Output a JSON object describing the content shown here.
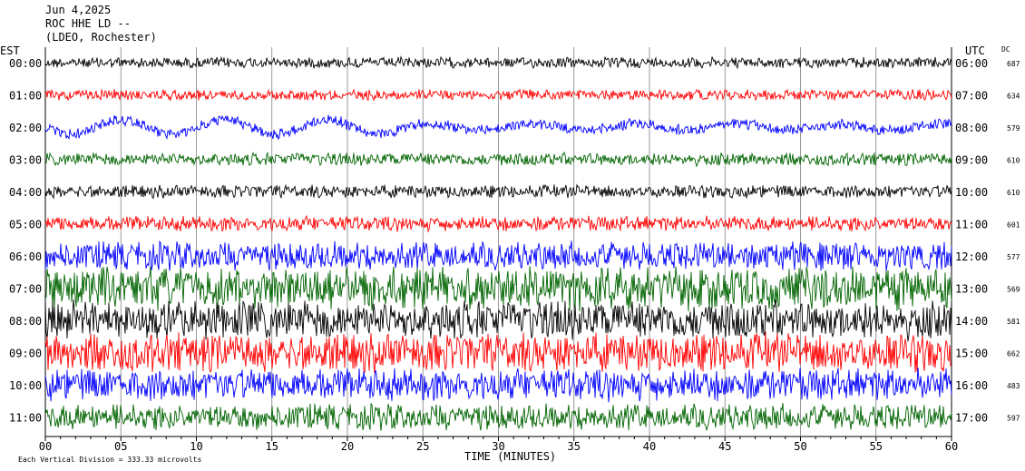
{
  "header": {
    "date": "Jun 4,2025",
    "station": "ROC HHE LD --",
    "network": "(LDEO, Rochester)"
  },
  "chart_data": {
    "type": "helicorder",
    "left_axis_label": "EST",
    "right_axis_label": "UTC",
    "dc_label": "DC",
    "xlabel": "TIME (MINUTES)",
    "xlim": [
      0,
      60
    ],
    "x_ticks": [
      "00",
      "05",
      "10",
      "15",
      "20",
      "25",
      "30",
      "35",
      "40",
      "45",
      "50",
      "55",
      "60"
    ],
    "footer": "Each Vertical Division =  333.33 microvolts",
    "rows": [
      {
        "est": "00:00",
        "utc": "06:00",
        "dc": "687",
        "color": "#000000"
      },
      {
        "est": "01:00",
        "utc": "07:00",
        "dc": "634",
        "color": "#ff0000"
      },
      {
        "est": "02:00",
        "utc": "08:00",
        "dc": "579",
        "color": "#0000ff"
      },
      {
        "est": "03:00",
        "utc": "09:00",
        "dc": "610",
        "color": "#006400"
      },
      {
        "est": "04:00",
        "utc": "10:00",
        "dc": "610",
        "color": "#000000"
      },
      {
        "est": "05:00",
        "utc": "11:00",
        "dc": "601",
        "color": "#ff0000"
      },
      {
        "est": "06:00",
        "utc": "12:00",
        "dc": "577",
        "color": "#0000ff"
      },
      {
        "est": "07:00",
        "utc": "13:00",
        "dc": "569",
        "color": "#006400"
      },
      {
        "est": "08:00",
        "utc": "14:00",
        "dc": "581",
        "color": "#000000"
      },
      {
        "est": "09:00",
        "utc": "15:00",
        "dc": "662",
        "color": "#ff0000"
      },
      {
        "est": "10:00",
        "utc": "16:00",
        "dc": "483",
        "color": "#0000ff"
      },
      {
        "est": "11:00",
        "utc": "17:00",
        "dc": "597",
        "color": "#006400"
      }
    ]
  }
}
